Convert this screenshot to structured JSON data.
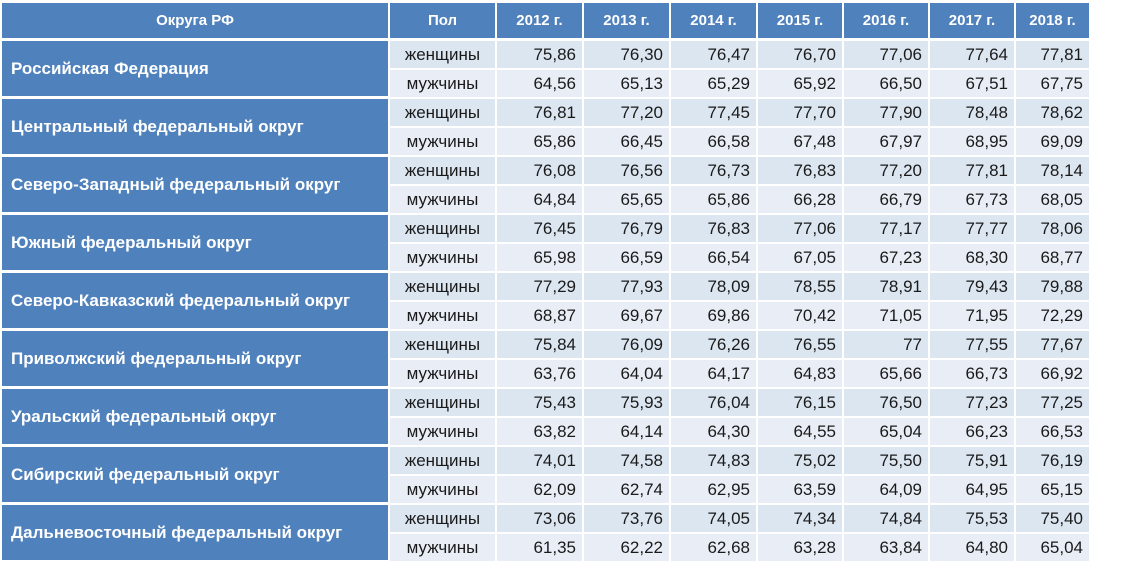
{
  "table": {
    "headers": [
      "Округа РФ",
      "Пол",
      "2012 г.",
      "2013 г.",
      "2014 г.",
      "2015 г.",
      "2016 г.",
      "2017 г.",
      "2018 г."
    ],
    "sex_labels": {
      "female": "женщины",
      "male": "мужчины"
    },
    "regions": [
      {
        "name": "Российская Федерация",
        "female": [
          "75,86",
          "76,30",
          "76,47",
          "76,70",
          "77,06",
          "77,64",
          "77,81"
        ],
        "male": [
          "64,56",
          "65,13",
          "65,29",
          "65,92",
          "66,50",
          "67,51",
          "67,75"
        ]
      },
      {
        "name": "Центральный федеральный округ",
        "female": [
          "76,81",
          "77,20",
          "77,45",
          "77,70",
          "77,90",
          "78,48",
          "78,62"
        ],
        "male": [
          "65,86",
          "66,45",
          "66,58",
          "67,48",
          "67,97",
          "68,95",
          "69,09"
        ]
      },
      {
        "name": "Северо-Западный федеральный округ",
        "female": [
          "76,08",
          "76,56",
          "76,73",
          "76,83",
          "77,20",
          "77,81",
          "78,14"
        ],
        "male": [
          "64,84",
          "65,65",
          "65,86",
          "66,28",
          "66,79",
          "67,73",
          "68,05"
        ]
      },
      {
        "name": "Южный федеральный округ",
        "female": [
          "76,45",
          "76,79",
          "76,83",
          "77,06",
          "77,17",
          "77,77",
          "78,06"
        ],
        "male": [
          "65,98",
          "66,59",
          "66,54",
          "67,05",
          "67,23",
          "68,30",
          "68,77"
        ]
      },
      {
        "name": "Северо-Кавказский федеральный округ",
        "female": [
          "77,29",
          "77,93",
          "78,09",
          "78,55",
          "78,91",
          "79,43",
          "79,88"
        ],
        "male": [
          "68,87",
          "69,67",
          "69,86",
          "70,42",
          "71,05",
          "71,95",
          "72,29"
        ]
      },
      {
        "name": "Приволжский федеральный округ",
        "female": [
          "75,84",
          "76,09",
          "76,26",
          "76,55",
          "77",
          "77,55",
          "77,67"
        ],
        "male": [
          "63,76",
          "64,04",
          "64,17",
          "64,83",
          "65,66",
          "66,73",
          "66,92"
        ]
      },
      {
        "name": "Уральский федеральный округ",
        "female": [
          "75,43",
          "75,93",
          "76,04",
          "76,15",
          "76,50",
          "77,23",
          "77,25"
        ],
        "male": [
          "63,82",
          "64,14",
          "64,30",
          "64,55",
          "65,04",
          "66,23",
          "66,53"
        ]
      },
      {
        "name": "Сибирский федеральный округ",
        "female": [
          "74,01",
          "74,58",
          "74,83",
          "75,02",
          "75,50",
          "75,91",
          "76,19"
        ],
        "male": [
          "62,09",
          "62,74",
          "62,95",
          "63,59",
          "64,09",
          "64,95",
          "65,15"
        ]
      },
      {
        "name": "Дальневосточный федеральный округ",
        "female": [
          "73,06",
          "73,76",
          "74,05",
          "74,34",
          "74,84",
          "75,53",
          "75,40"
        ],
        "male": [
          "61,35",
          "62,22",
          "62,68",
          "63,28",
          "63,84",
          "64,80",
          "65,04"
        ]
      }
    ]
  }
}
